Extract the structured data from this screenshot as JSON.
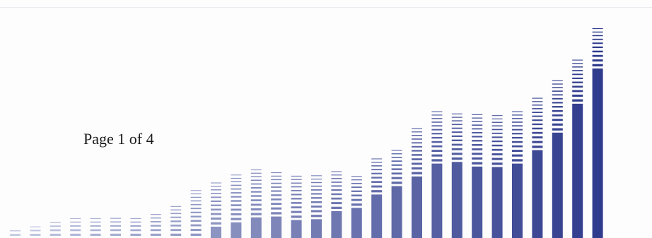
{
  "page_label": "Page 1 of 4",
  "colors": {
    "bar_dark": "#2f3b8c",
    "bar_light": "#c6cbe4",
    "background": "#ffffff",
    "text": "#1b1b1b"
  },
  "decoration": {
    "description_type": "stepped-bar graphic",
    "levels": [
      6,
      8,
      12,
      14,
      14,
      15,
      14,
      17,
      22,
      32,
      38,
      42,
      46,
      45,
      43,
      42,
      45,
      42,
      54,
      60,
      75,
      86,
      85,
      84,
      82,
      86,
      95,
      107,
      120,
      142
    ],
    "solid_fraction": [
      0.0,
      0.0,
      0.0,
      0.0,
      0.0,
      0.0,
      0.0,
      0.0,
      0.0,
      0.0,
      0.2,
      0.25,
      0.3,
      0.32,
      0.28,
      0.3,
      0.4,
      0.48,
      0.54,
      0.58,
      0.55,
      0.58,
      0.6,
      0.57,
      0.58,
      0.58,
      0.62,
      0.66,
      0.75,
      0.8
    ]
  }
}
